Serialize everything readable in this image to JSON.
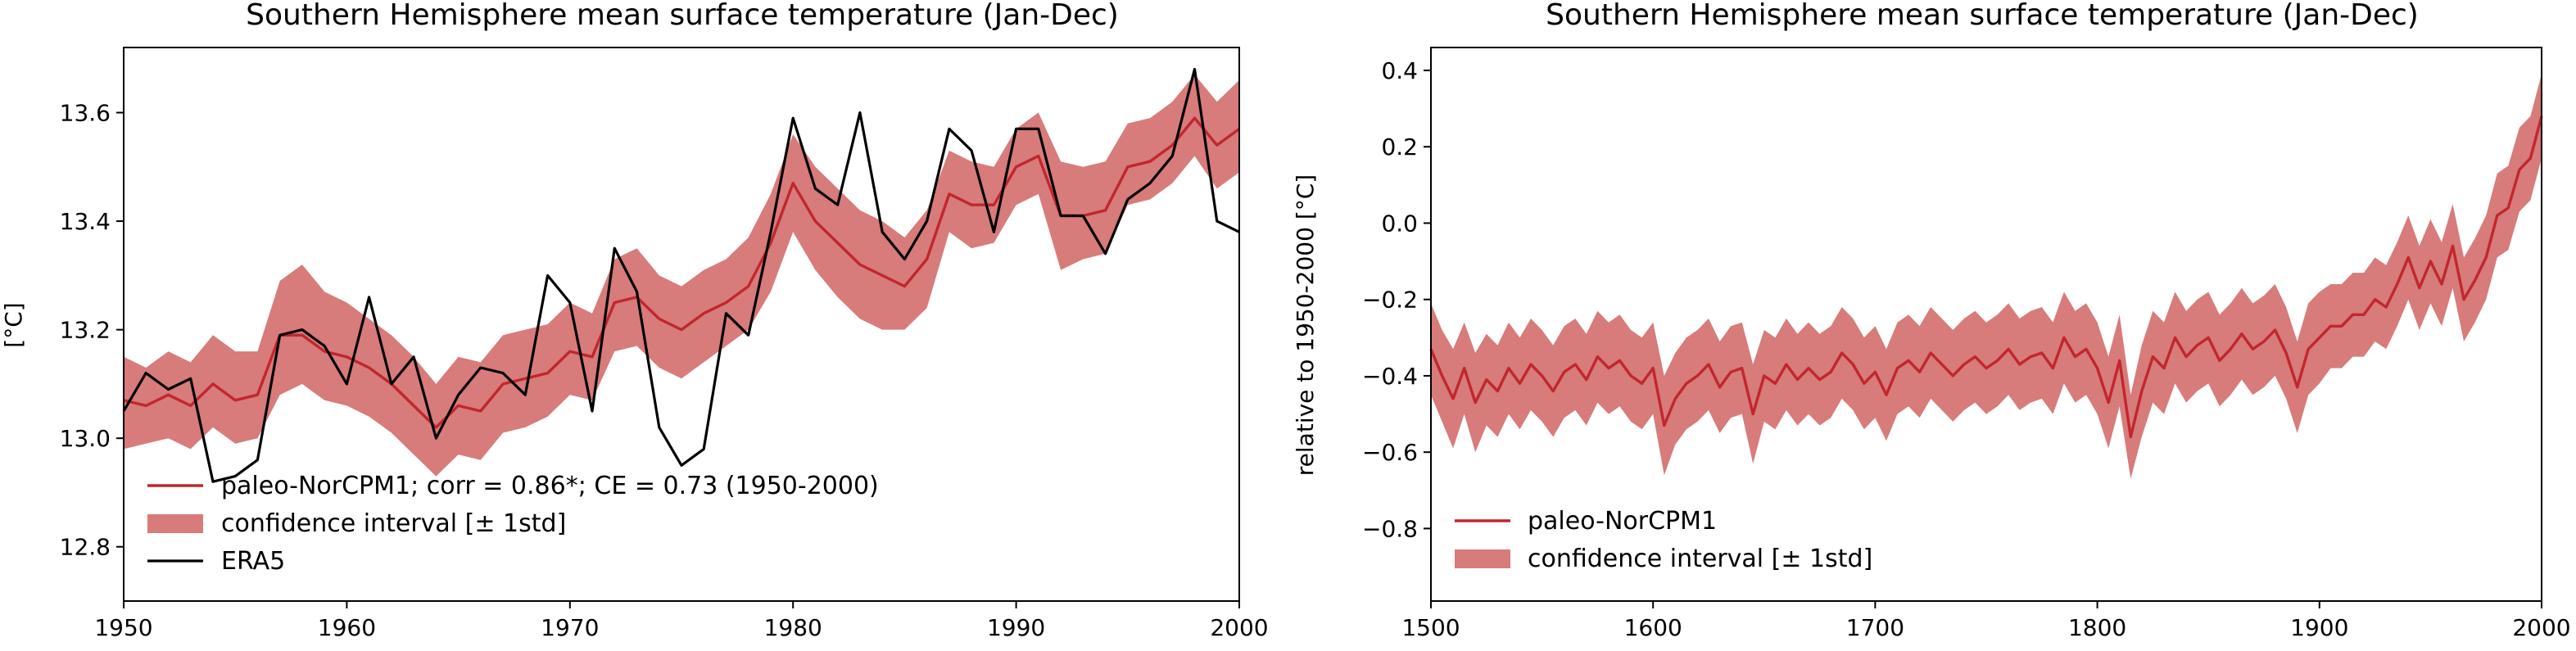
{
  "chart_data": [
    {
      "type": "line",
      "title": "Southern Hemisphere mean surface temperature (Jan-Dec)",
      "xlabel": "",
      "ylabel": "[°C]",
      "xlim": [
        1950,
        2000
      ],
      "ylim": [
        12.7,
        13.72
      ],
      "x_ticks": [
        1950,
        1960,
        1970,
        1980,
        1990,
        2000
      ],
      "x_tick_labels": [
        "1950",
        "1960",
        "1970",
        "1980",
        "1990",
        "2000"
      ],
      "y_ticks": [
        12.8,
        13.0,
        13.2,
        13.4,
        13.6
      ],
      "y_tick_labels": [
        "12.8",
        "13.0",
        "13.2",
        "13.4",
        "13.6"
      ],
      "grid": false,
      "legend_position": "lower-left",
      "legend": [
        {
          "label": "paleo-NorCPM1; corr = 0.86*; CE = 0.73 (1950-2000)",
          "kind": "line",
          "color": "#c1272d"
        },
        {
          "label": "confidence interval [± 1std]",
          "kind": "patch",
          "color": "#d77b7b"
        },
        {
          "label": "ERA5",
          "kind": "line",
          "color": "#000000"
        }
      ],
      "x": [
        1950,
        1951,
        1952,
        1953,
        1954,
        1955,
        1956,
        1957,
        1958,
        1959,
        1960,
        1961,
        1962,
        1963,
        1964,
        1965,
        1966,
        1967,
        1968,
        1969,
        1970,
        1971,
        1972,
        1973,
        1974,
        1975,
        1976,
        1977,
        1978,
        1979,
        1980,
        1981,
        1982,
        1983,
        1984,
        1985,
        1986,
        1987,
        1988,
        1989,
        1990,
        1991,
        1992,
        1993,
        1994,
        1995,
        1996,
        1997,
        1998,
        1999,
        2000
      ],
      "series": [
        {
          "name": "paleo-NorCPM1; corr = 0.86*; CE = 0.73 (1950-2000)",
          "color": "#c1272d",
          "values": [
            13.07,
            13.06,
            13.08,
            13.06,
            13.1,
            13.07,
            13.08,
            13.19,
            13.19,
            13.16,
            13.15,
            13.13,
            13.1,
            13.06,
            13.02,
            13.06,
            13.05,
            13.1,
            13.11,
            13.12,
            13.16,
            13.15,
            13.25,
            13.26,
            13.22,
            13.2,
            13.23,
            13.25,
            13.28,
            13.36,
            13.47,
            13.4,
            13.36,
            13.32,
            13.3,
            13.28,
            13.33,
            13.45,
            13.43,
            13.43,
            13.5,
            13.52,
            13.41,
            13.41,
            13.42,
            13.5,
            13.51,
            13.54,
            13.59,
            13.54,
            13.57
          ]
        },
        {
          "name": "ERA5",
          "color": "#000000",
          "values": [
            13.05,
            13.12,
            13.09,
            13.11,
            12.92,
            12.93,
            12.96,
            13.19,
            13.2,
            13.17,
            13.1,
            13.26,
            13.1,
            13.15,
            13.0,
            13.08,
            13.13,
            13.12,
            13.08,
            13.3,
            13.25,
            13.05,
            13.35,
            13.27,
            13.02,
            12.95,
            12.98,
            13.23,
            13.19,
            13.38,
            13.59,
            13.46,
            13.43,
            13.6,
            13.38,
            13.33,
            13.4,
            13.57,
            13.53,
            13.38,
            13.57,
            13.57,
            13.41,
            13.41,
            13.34,
            13.44,
            13.47,
            13.52,
            13.68,
            13.4,
            13.38
          ]
        }
      ],
      "band": {
        "name": "confidence interval [± 1std]",
        "color": "#d77b7b",
        "lower": [
          12.98,
          12.99,
          13.0,
          12.98,
          13.02,
          12.99,
          13.0,
          13.08,
          13.1,
          13.07,
          13.06,
          13.04,
          13.01,
          12.97,
          12.93,
          12.97,
          12.96,
          13.01,
          13.02,
          13.04,
          13.08,
          13.07,
          13.16,
          13.17,
          13.13,
          13.11,
          13.14,
          13.17,
          13.2,
          13.27,
          13.38,
          13.31,
          13.26,
          13.22,
          13.2,
          13.2,
          13.24,
          13.38,
          13.35,
          13.36,
          13.43,
          13.45,
          13.31,
          13.33,
          13.34,
          13.43,
          13.44,
          13.47,
          13.52,
          13.46,
          13.49
        ],
        "upper": [
          13.15,
          13.13,
          13.16,
          13.14,
          13.19,
          13.16,
          13.16,
          13.29,
          13.32,
          13.27,
          13.25,
          13.22,
          13.19,
          13.15,
          13.1,
          13.15,
          13.14,
          13.19,
          13.2,
          13.21,
          13.25,
          13.23,
          13.33,
          13.35,
          13.3,
          13.28,
          13.31,
          13.33,
          13.37,
          13.45,
          13.56,
          13.5,
          13.46,
          13.42,
          13.4,
          13.37,
          13.42,
          13.53,
          13.51,
          13.5,
          13.57,
          13.6,
          13.51,
          13.5,
          13.51,
          13.58,
          13.59,
          13.62,
          13.67,
          13.62,
          13.66
        ]
      }
    },
    {
      "type": "line",
      "title": "Southern Hemisphere mean surface temperature (Jan-Dec)",
      "xlabel": "",
      "ylabel": "relative to 1950-2000 [°C]",
      "xlim": [
        1500,
        2000
      ],
      "ylim": [
        -0.99,
        0.46
      ],
      "x_ticks": [
        1500,
        1600,
        1700,
        1800,
        1900,
        2000
      ],
      "x_tick_labels": [
        "1500",
        "1600",
        "1700",
        "1800",
        "1900",
        "2000"
      ],
      "y_ticks": [
        -0.8,
        -0.6,
        -0.4,
        -0.2,
        0.0,
        0.2,
        0.4
      ],
      "y_tick_labels": [
        "−0.8",
        "−0.6",
        "−0.4",
        "−0.2",
        "0.0",
        "0.2",
        "0.4"
      ],
      "grid": false,
      "legend_position": "lower-left",
      "legend": [
        {
          "label": "paleo-NorCPM1",
          "kind": "line",
          "color": "#c1272d"
        },
        {
          "label": "confidence interval [± 1std]",
          "kind": "patch",
          "color": "#d77b7b"
        }
      ],
      "x": [
        1500,
        1505,
        1510,
        1515,
        1520,
        1525,
        1530,
        1535,
        1540,
        1545,
        1550,
        1555,
        1560,
        1565,
        1570,
        1575,
        1580,
        1585,
        1590,
        1595,
        1600,
        1605,
        1610,
        1615,
        1620,
        1625,
        1630,
        1635,
        1640,
        1645,
        1650,
        1655,
        1660,
        1665,
        1670,
        1675,
        1680,
        1685,
        1690,
        1695,
        1700,
        1705,
        1710,
        1715,
        1720,
        1725,
        1730,
        1735,
        1740,
        1745,
        1750,
        1755,
        1760,
        1765,
        1770,
        1775,
        1780,
        1785,
        1790,
        1795,
        1800,
        1805,
        1810,
        1815,
        1820,
        1825,
        1830,
        1835,
        1840,
        1845,
        1850,
        1855,
        1860,
        1865,
        1870,
        1875,
        1880,
        1885,
        1890,
        1895,
        1900,
        1905,
        1910,
        1915,
        1920,
        1925,
        1930,
        1935,
        1940,
        1945,
        1950,
        1955,
        1960,
        1965,
        1970,
        1975,
        1980,
        1985,
        1990,
        1995,
        2000
      ],
      "series": [
        {
          "name": "paleo-NorCPM1",
          "color": "#c1272d",
          "values": [
            -0.33,
            -0.4,
            -0.46,
            -0.38,
            -0.47,
            -0.41,
            -0.44,
            -0.38,
            -0.42,
            -0.37,
            -0.4,
            -0.44,
            -0.39,
            -0.37,
            -0.41,
            -0.35,
            -0.38,
            -0.36,
            -0.4,
            -0.42,
            -0.38,
            -0.53,
            -0.46,
            -0.42,
            -0.4,
            -0.37,
            -0.43,
            -0.39,
            -0.38,
            -0.5,
            -0.4,
            -0.42,
            -0.37,
            -0.41,
            -0.38,
            -0.41,
            -0.39,
            -0.34,
            -0.37,
            -0.42,
            -0.39,
            -0.45,
            -0.38,
            -0.36,
            -0.39,
            -0.34,
            -0.37,
            -0.4,
            -0.37,
            -0.35,
            -0.38,
            -0.36,
            -0.33,
            -0.37,
            -0.35,
            -0.34,
            -0.38,
            -0.3,
            -0.35,
            -0.33,
            -0.38,
            -0.47,
            -0.36,
            -0.56,
            -0.44,
            -0.35,
            -0.38,
            -0.3,
            -0.35,
            -0.32,
            -0.3,
            -0.36,
            -0.33,
            -0.29,
            -0.33,
            -0.31,
            -0.28,
            -0.34,
            -0.43,
            -0.33,
            -0.3,
            -0.27,
            -0.27,
            -0.24,
            -0.24,
            -0.2,
            -0.22,
            -0.16,
            -0.09,
            -0.17,
            -0.1,
            -0.16,
            -0.06,
            -0.2,
            -0.15,
            -0.09,
            0.02,
            0.04,
            0.14,
            0.17,
            0.28
          ]
        }
      ],
      "band": {
        "name": "confidence interval [± 1std]",
        "color": "#d77b7b",
        "lower": [
          -0.45,
          -0.52,
          -0.59,
          -0.5,
          -0.6,
          -0.53,
          -0.56,
          -0.5,
          -0.54,
          -0.49,
          -0.52,
          -0.56,
          -0.51,
          -0.49,
          -0.53,
          -0.47,
          -0.5,
          -0.48,
          -0.52,
          -0.54,
          -0.5,
          -0.66,
          -0.58,
          -0.54,
          -0.52,
          -0.49,
          -0.55,
          -0.51,
          -0.5,
          -0.63,
          -0.52,
          -0.54,
          -0.49,
          -0.53,
          -0.5,
          -0.53,
          -0.51,
          -0.46,
          -0.49,
          -0.54,
          -0.51,
          -0.57,
          -0.5,
          -0.48,
          -0.51,
          -0.46,
          -0.49,
          -0.52,
          -0.49,
          -0.47,
          -0.5,
          -0.48,
          -0.45,
          -0.49,
          -0.47,
          -0.46,
          -0.5,
          -0.42,
          -0.47,
          -0.45,
          -0.5,
          -0.59,
          -0.48,
          -0.67,
          -0.56,
          -0.47,
          -0.5,
          -0.42,
          -0.47,
          -0.44,
          -0.42,
          -0.48,
          -0.45,
          -0.41,
          -0.45,
          -0.43,
          -0.4,
          -0.46,
          -0.55,
          -0.45,
          -0.42,
          -0.38,
          -0.38,
          -0.35,
          -0.35,
          -0.31,
          -0.33,
          -0.27,
          -0.2,
          -0.28,
          -0.21,
          -0.27,
          -0.17,
          -0.31,
          -0.26,
          -0.2,
          -0.09,
          -0.07,
          0.03,
          0.06,
          0.17
        ],
        "upper": [
          -0.21,
          -0.28,
          -0.33,
          -0.26,
          -0.34,
          -0.29,
          -0.32,
          -0.26,
          -0.3,
          -0.25,
          -0.28,
          -0.32,
          -0.27,
          -0.25,
          -0.29,
          -0.23,
          -0.26,
          -0.24,
          -0.28,
          -0.3,
          -0.26,
          -0.4,
          -0.34,
          -0.3,
          -0.28,
          -0.25,
          -0.31,
          -0.27,
          -0.26,
          -0.37,
          -0.28,
          -0.3,
          -0.25,
          -0.29,
          -0.26,
          -0.29,
          -0.27,
          -0.22,
          -0.25,
          -0.3,
          -0.27,
          -0.33,
          -0.26,
          -0.24,
          -0.27,
          -0.22,
          -0.25,
          -0.28,
          -0.25,
          -0.23,
          -0.26,
          -0.24,
          -0.21,
          -0.25,
          -0.23,
          -0.22,
          -0.26,
          -0.18,
          -0.23,
          -0.21,
          -0.26,
          -0.35,
          -0.24,
          -0.45,
          -0.32,
          -0.23,
          -0.26,
          -0.18,
          -0.23,
          -0.2,
          -0.18,
          -0.24,
          -0.21,
          -0.17,
          -0.21,
          -0.19,
          -0.16,
          -0.22,
          -0.31,
          -0.21,
          -0.18,
          -0.16,
          -0.16,
          -0.13,
          -0.13,
          -0.09,
          -0.11,
          -0.05,
          0.02,
          -0.06,
          0.01,
          -0.05,
          0.05,
          -0.09,
          -0.04,
          0.02,
          0.13,
          0.15,
          0.25,
          0.28,
          0.39
        ]
      }
    }
  ]
}
